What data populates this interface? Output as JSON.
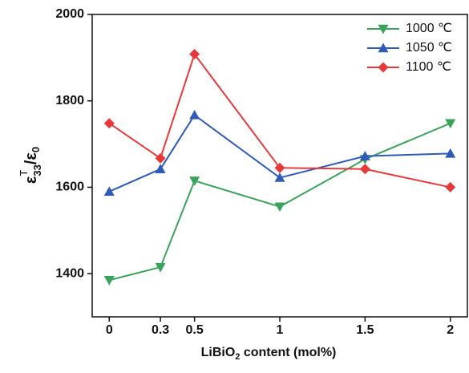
{
  "chart_data": {
    "type": "line",
    "x_label": [
      "LiBiO",
      "2",
      " content (mol%)"
    ],
    "y_label": [
      "ε",
      "T",
      "33",
      "/ε",
      "0"
    ],
    "x": [
      0,
      0.3,
      0.5,
      1,
      1.5,
      2
    ],
    "xlim": [
      -0.1,
      2.1
    ],
    "xticks": [
      0,
      0.3,
      0.5,
      1,
      1.5,
      2
    ],
    "ylim": [
      1300,
      2000
    ],
    "yticks": [
      1400,
      1600,
      1800,
      2000
    ],
    "legend": "upper right",
    "series": [
      {
        "name": "1000 ℃",
        "color": "#3aa35b",
        "marker": "triangle-down",
        "values": [
          1385,
          1415,
          1615,
          1555,
          1665,
          1748
        ]
      },
      {
        "name": "1050 ℃",
        "color": "#2f5bb7",
        "marker": "triangle-up",
        "values": [
          1590,
          1642,
          1767,
          1622,
          1672,
          1678
        ]
      },
      {
        "name": "1100 ℃",
        "color": "#e8383a",
        "marker": "diamond",
        "values": [
          1748,
          1667,
          1908,
          1645,
          1642,
          1600
        ]
      }
    ]
  }
}
